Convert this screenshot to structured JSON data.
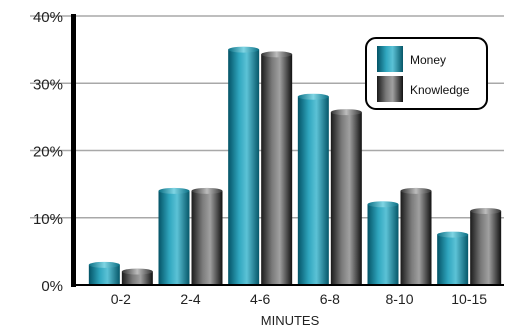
{
  "chart_data": {
    "type": "bar",
    "title": "",
    "xlabel": "MINUTES",
    "ylabel": "",
    "categories": [
      "0-2",
      "2-4",
      "4-6",
      "6-8",
      "8-10",
      "10-15"
    ],
    "series": [
      {
        "name": "Money",
        "values": [
          3,
          14,
          35,
          28,
          12,
          7.5
        ]
      },
      {
        "name": "Knowledge",
        "values": [
          2,
          14,
          34.3,
          25.7,
          14,
          11
        ]
      }
    ],
    "ylim": [
      0,
      40
    ],
    "yticks": [
      "0%",
      "10%",
      "20%",
      "30%",
      "40%"
    ],
    "grid": true,
    "legend_position": "top-right",
    "colors": {
      "money_light": "#45b4cb",
      "money_mid": "#0d8aa3",
      "money_dark": "#044f60",
      "knowledge_light": "#9a9a9a",
      "knowledge_mid": "#555555",
      "knowledge_dark": "#111111",
      "axis": "#000000",
      "grid": "#a8a8a8"
    }
  }
}
